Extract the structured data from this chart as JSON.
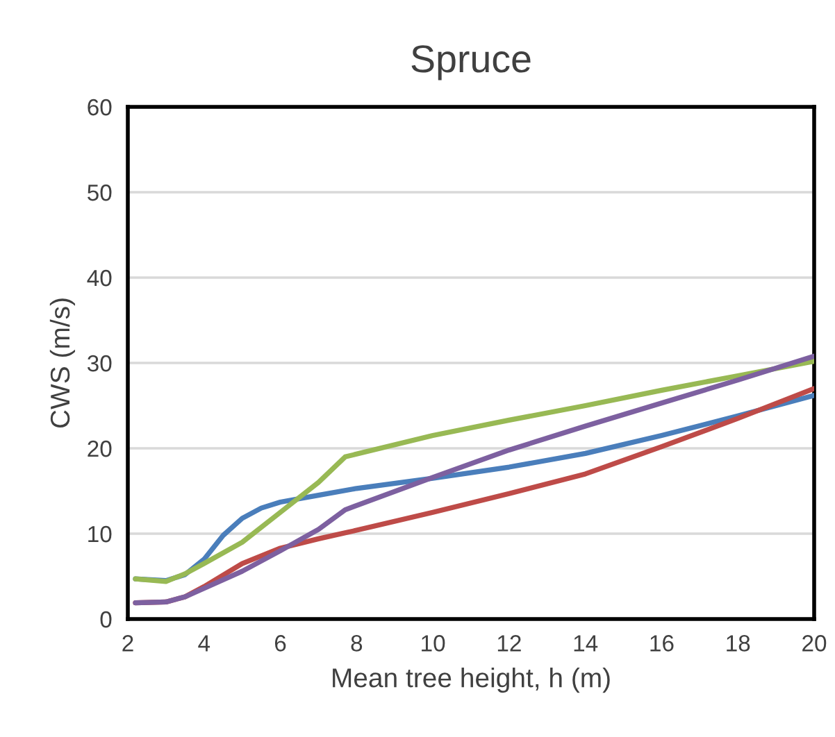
{
  "chart_data": {
    "type": "line",
    "title": "Spruce",
    "xlabel": "Mean tree height, h (m)",
    "ylabel": "CWS (m/s)",
    "xlim": [
      2,
      20
    ],
    "xticks": [
      2,
      4,
      6,
      8,
      10,
      12,
      14,
      16,
      18,
      20
    ],
    "ylim": [
      0,
      60
    ],
    "yticks": [
      0,
      10,
      20,
      30,
      40,
      50,
      60
    ],
    "grid": "y",
    "marker": "none",
    "line_style": "solid",
    "series": [
      {
        "color": "#4a7ebb",
        "x": [
          2.2,
          3,
          3.5,
          4,
          4.5,
          5,
          5.5,
          6,
          7,
          8,
          10,
          12,
          14,
          16,
          18,
          20
        ],
        "values": [
          4.7,
          4.5,
          5.2,
          7,
          9.8,
          11.8,
          13,
          13.7,
          14.5,
          15.3,
          16.5,
          17.8,
          19.4,
          21.5,
          23.8,
          26.2
        ]
      },
      {
        "color": "#be4b48",
        "x": [
          2.2,
          3,
          3.5,
          4,
          5,
          6,
          7,
          8,
          10,
          12,
          14,
          16,
          18,
          20
        ],
        "values": [
          1.9,
          2.0,
          2.6,
          3.8,
          6.5,
          8.3,
          9.4,
          10.4,
          12.5,
          14.7,
          17,
          20.2,
          23.5,
          27
        ]
      },
      {
        "color": "#98b954",
        "x": [
          2.2,
          3,
          3.5,
          4,
          5,
          6,
          7,
          7.7,
          10,
          12,
          14,
          16,
          18,
          20
        ],
        "values": [
          4.7,
          4.4,
          5.3,
          6.5,
          9,
          12.5,
          16,
          19,
          21.5,
          23.3,
          25,
          26.8,
          28.5,
          30.2
        ]
      },
      {
        "color": "#7d60a0",
        "x": [
          2.2,
          3,
          3.5,
          4,
          5,
          6,
          7,
          7.7,
          10,
          12,
          14,
          16,
          18,
          20
        ],
        "values": [
          1.9,
          2.0,
          2.6,
          3.6,
          5.6,
          8,
          10.5,
          12.8,
          16.6,
          19.8,
          22.6,
          25.3,
          28,
          30.8
        ]
      }
    ]
  }
}
